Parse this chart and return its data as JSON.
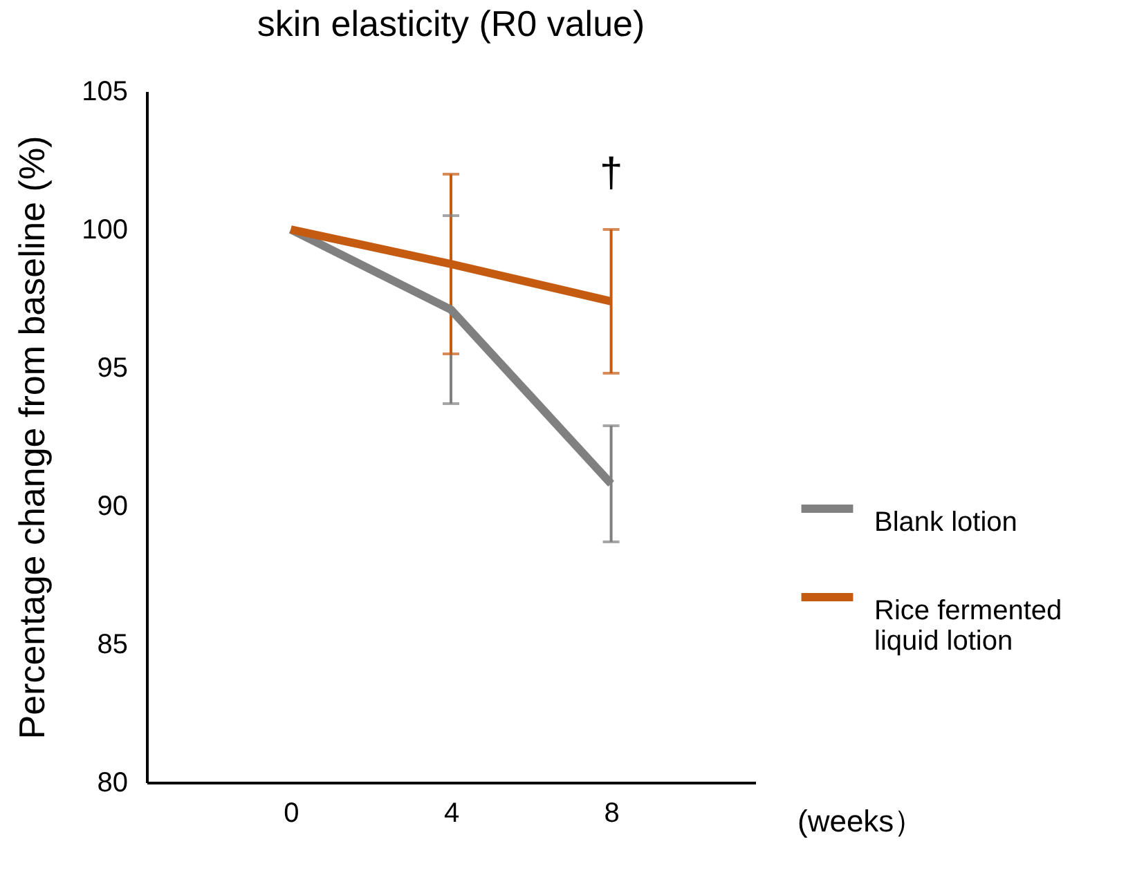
{
  "chart_data": {
    "type": "line",
    "title": "skin elasticity (R0 value)",
    "xlabel": "(weeks）",
    "ylabel": "Percentage change from baseline (%)",
    "categories": [
      "0",
      "4",
      "8"
    ],
    "series": [
      {
        "name": "Blank lotion",
        "color": "#808080",
        "values": [
          100,
          97.1,
          90.8
        ],
        "errors": [
          null,
          3.4,
          2.1
        ]
      },
      {
        "name": "Rice fermented liquid lotion",
        "color": "#c55a11",
        "values": [
          100,
          98.75,
          97.4
        ],
        "errors": [
          null,
          3.25,
          2.6
        ]
      }
    ],
    "ylim": [
      80,
      105
    ],
    "yticks": [
      80,
      85,
      90,
      95,
      100,
      105
    ],
    "grid": false,
    "legend": "right",
    "marker": "none",
    "line_style": "solid",
    "annotations": [
      "†"
    ]
  }
}
